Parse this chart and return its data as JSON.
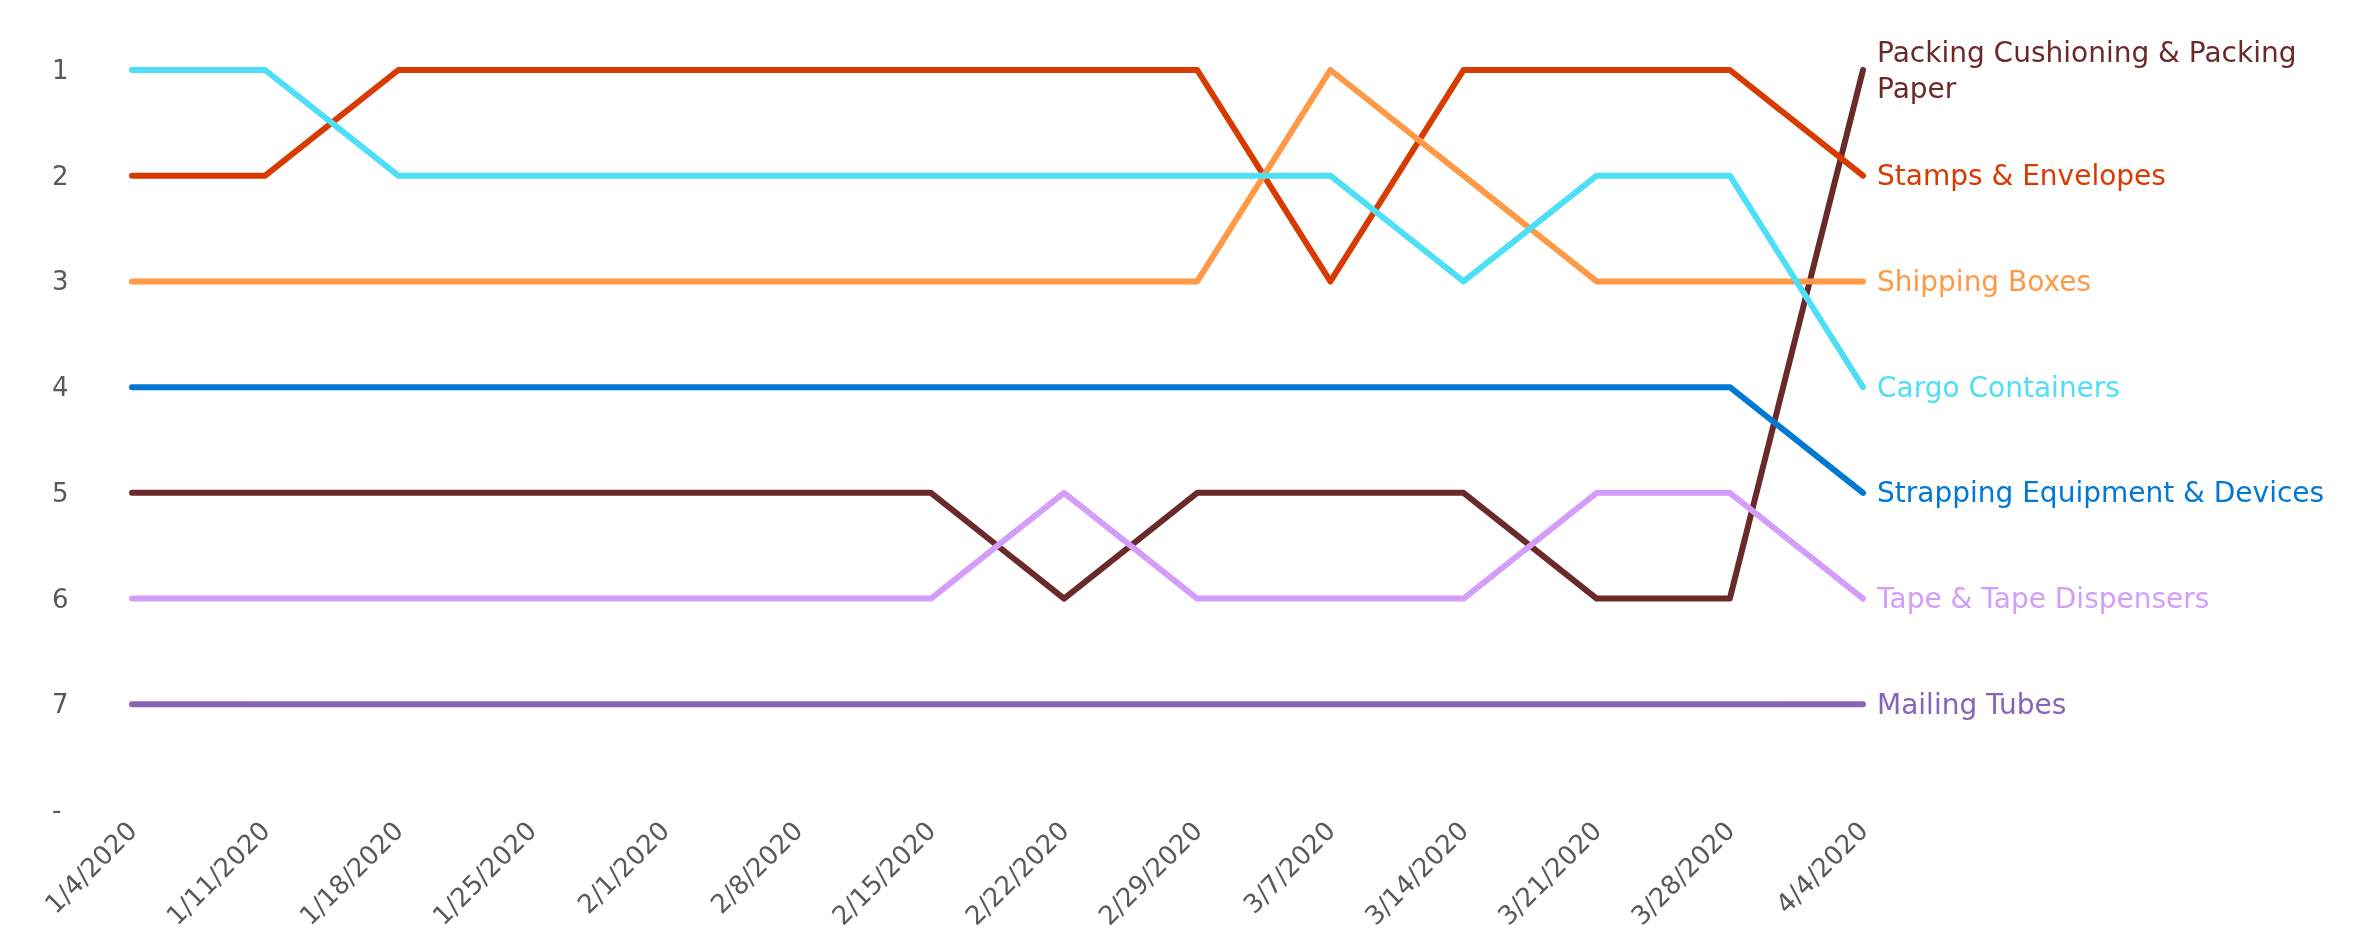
{
  "chart_data": {
    "type": "line",
    "categories": [
      "1/4/2020",
      "1/11/2020",
      "1/18/2020",
      "1/25/2020",
      "2/1/2020",
      "2/8/2020",
      "2/15/2020",
      "2/22/2020",
      "2/29/2020",
      "3/7/2020",
      "3/14/2020",
      "3/21/2020",
      "3/28/2020",
      "4/4/2020"
    ],
    "series": [
      {
        "name": "Packing Cushioning & Packing Paper",
        "color": "#6b2a2a",
        "values": [
          5,
          5,
          5,
          5,
          5,
          5,
          5,
          6,
          5,
          5,
          5,
          6,
          6,
          1
        ]
      },
      {
        "name": "Stamps & Envelopes",
        "color": "#d83b01",
        "values": [
          2,
          2,
          1,
          1,
          1,
          1,
          1,
          1,
          1,
          3,
          1,
          1,
          1,
          2
        ]
      },
      {
        "name": "Shipping Boxes",
        "color": "#ff9945",
        "values": [
          3,
          3,
          3,
          3,
          3,
          3,
          3,
          3,
          3,
          1,
          2,
          3,
          3,
          3
        ]
      },
      {
        "name": "Cargo Containers",
        "color": "#4ddff5",
        "values": [
          1,
          1,
          2,
          2,
          2,
          2,
          2,
          2,
          2,
          2,
          3,
          2,
          2,
          4
        ]
      },
      {
        "name": "Strapping Equipment & Devices",
        "color": "#0078d4",
        "values": [
          4,
          4,
          4,
          4,
          4,
          4,
          4,
          4,
          4,
          4,
          4,
          4,
          4,
          5
        ]
      },
      {
        "name": "Tape & Tape Dispensers",
        "color": "#d59dfa",
        "values": [
          6,
          6,
          6,
          6,
          6,
          6,
          6,
          5,
          6,
          6,
          6,
          5,
          5,
          6
        ]
      },
      {
        "name": "Mailing Tubes",
        "color": "#8764b8",
        "values": [
          7,
          7,
          7,
          7,
          7,
          7,
          7,
          7,
          7,
          7,
          7,
          7,
          7,
          7
        ]
      }
    ],
    "ylim": [
      8,
      1
    ],
    "yticks": [
      1,
      2,
      3,
      4,
      5,
      6,
      7,
      {
        "value": 8,
        "label": "-"
      }
    ],
    "grid": false,
    "legend": false,
    "marker": "none",
    "line_style": "solid"
  }
}
